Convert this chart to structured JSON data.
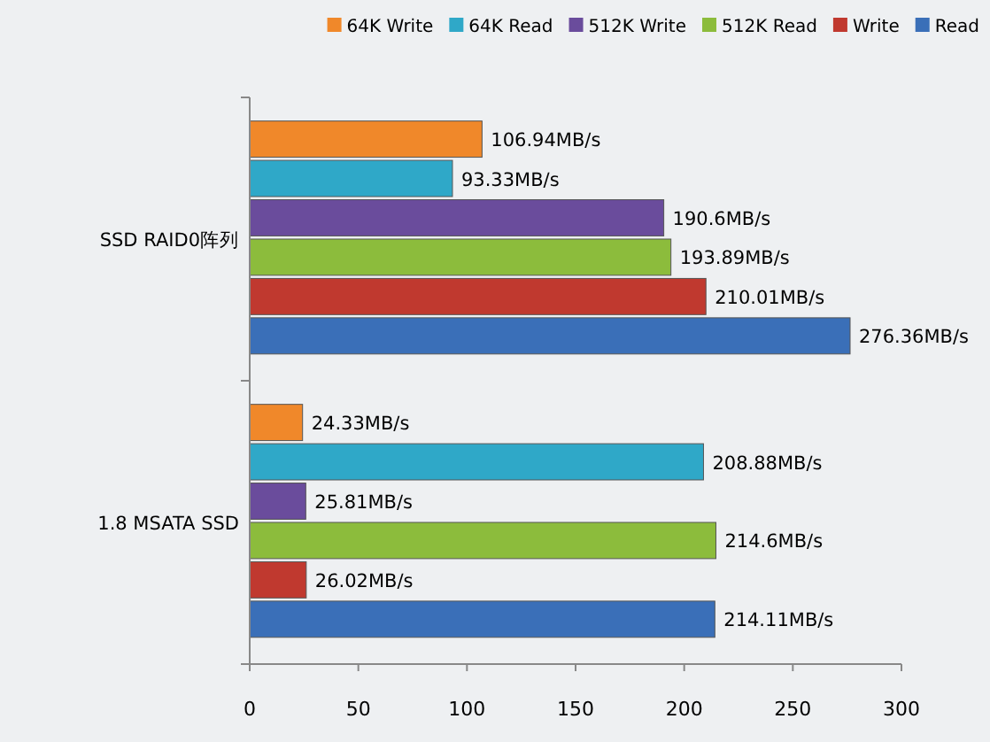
{
  "chart_data": {
    "type": "bar",
    "orientation": "horizontal",
    "categories": [
      "SSD RAID0阵列",
      "1.8 MSATA SSD"
    ],
    "series": [
      {
        "name": "64K Write",
        "color": "#f0882a",
        "values": [
          106.94,
          24.33
        ],
        "value_labels": [
          "106.94MB/s",
          "24.33MB/s"
        ]
      },
      {
        "name": "64K Read",
        "color": "#2fa8c8",
        "values": [
          93.33,
          208.88
        ],
        "value_labels": [
          "93.33MB/s",
          "208.88MB/s"
        ]
      },
      {
        "name": "512K Write",
        "color": "#6a4c9c",
        "values": [
          190.6,
          25.81
        ],
        "value_labels": [
          "190.6MB/s",
          "25.81MB/s"
        ]
      },
      {
        "name": "512K Read",
        "color": "#8cbc3c",
        "values": [
          193.89,
          214.6
        ],
        "value_labels": [
          "193.89MB/s",
          "214.6MB/s"
        ]
      },
      {
        "name": "Write",
        "color": "#c0392f",
        "values": [
          210.01,
          26.02
        ],
        "value_labels": [
          "210.01MB/s",
          "26.02MB/s"
        ]
      },
      {
        "name": "Read",
        "color": "#3a6fb8",
        "values": [
          276.36,
          214.11
        ],
        "value_labels": [
          "276.36MB/s",
          "214.11MB/s"
        ]
      }
    ],
    "xlim": [
      0,
      300
    ],
    "xticks": [
      0,
      50,
      100,
      150,
      200,
      250,
      300
    ],
    "legend": "top right"
  }
}
